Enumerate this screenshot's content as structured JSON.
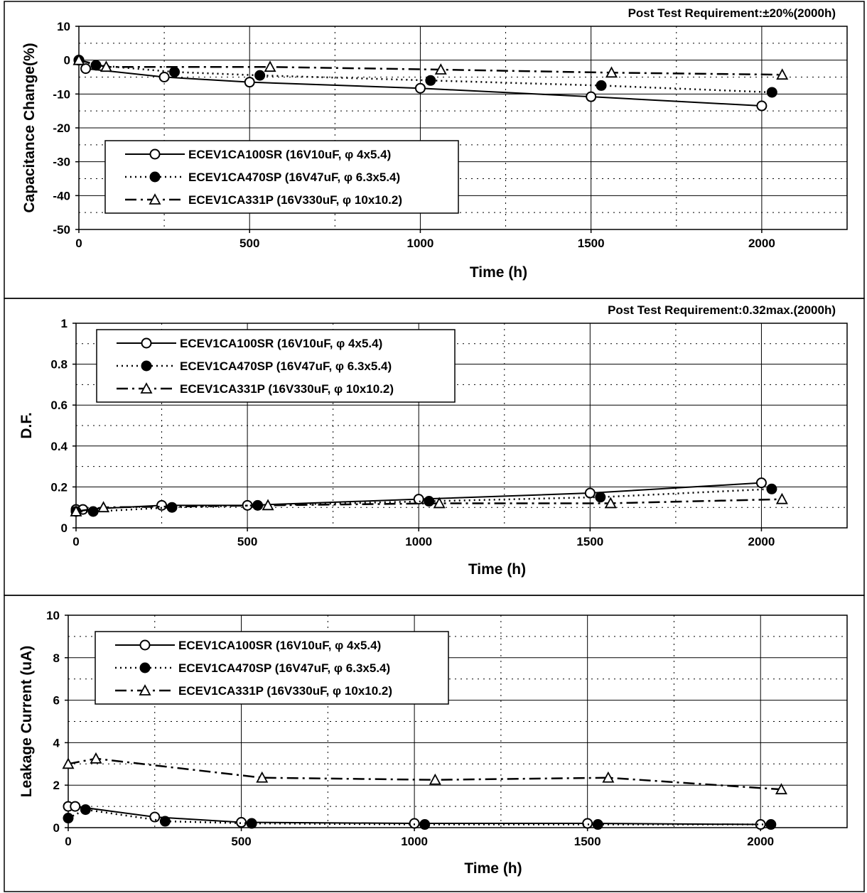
{
  "figure_title": "",
  "chart_data": [
    {
      "type": "line",
      "title": "",
      "requirement": "Post Test Requirement:±20%(2000h)",
      "xlabel": "Time (h)",
      "ylabel": "Capacitance Change(%)",
      "xlim": [
        0,
        2250
      ],
      "ylim": [
        -50,
        10
      ],
      "xticks": [
        "0",
        "500",
        "1000",
        "1500",
        "2000"
      ],
      "yticks": [
        "10",
        "0",
        "-10",
        "-20",
        "-30",
        "-40",
        "-50"
      ],
      "grid": true,
      "legend_position": "lower-left",
      "series": [
        {
          "name": "ECEV1CA100SR (16V10uF, φ 4x5.4)",
          "marker": "open-circle",
          "line": "solid",
          "x": [
            0,
            20,
            250,
            500,
            1000,
            1500,
            2000
          ],
          "y": [
            0,
            -2.5,
            -5,
            -6.5,
            -8.3,
            -10.8,
            -13.5
          ]
        },
        {
          "name": "ECEV1CA470SP (16V47uF, φ 6.3x5.4)",
          "marker": "filled-circle",
          "line": "dotted",
          "x": [
            0,
            50,
            280,
            530,
            1030,
            1530,
            2030
          ],
          "y": [
            0,
            -1.5,
            -3.5,
            -4.5,
            -6,
            -7.5,
            -9.5
          ]
        },
        {
          "name": "ECEV1CA331P (16V330uF, φ 10x10.2)",
          "marker": "open-triangle",
          "line": "dash-dot",
          "x": [
            0,
            80,
            560,
            1060,
            1560,
            2060
          ],
          "y": [
            0,
            -2,
            -2,
            -2.8,
            -3.7,
            -4.3
          ]
        }
      ]
    },
    {
      "type": "line",
      "title": "",
      "requirement": "Post Test Requirement:0.32max.(2000h)",
      "xlabel": "Time (h)",
      "ylabel": "D.F.",
      "xlim": [
        0,
        2250
      ],
      "ylim": [
        0,
        1
      ],
      "xticks": [
        "0",
        "500",
        "1000",
        "1500",
        "2000"
      ],
      "yticks": [
        "1",
        "0.8",
        "0.6",
        "0.4",
        "0.2",
        "0"
      ],
      "grid": true,
      "legend_position": "upper-left",
      "series": [
        {
          "name": "ECEV1CA100SR (16V10uF, φ 4x5.4)",
          "marker": "open-circle",
          "line": "solid",
          "x": [
            0,
            20,
            250,
            500,
            1000,
            1500,
            2000
          ],
          "y": [
            0.09,
            0.09,
            0.11,
            0.11,
            0.14,
            0.17,
            0.22
          ]
        },
        {
          "name": "ECEV1CA470SP (16V47uF, φ 6.3x5.4)",
          "marker": "filled-circle",
          "line": "dotted",
          "x": [
            0,
            50,
            280,
            530,
            1030,
            1530,
            2030
          ],
          "y": [
            0.08,
            0.08,
            0.1,
            0.11,
            0.13,
            0.15,
            0.19
          ]
        },
        {
          "name": "ECEV1CA331P (16V330uF, φ 10x10.2)",
          "marker": "open-triangle",
          "line": "dash-dot",
          "x": [
            0,
            80,
            560,
            1060,
            1560,
            2060
          ],
          "y": [
            0.08,
            0.1,
            0.11,
            0.12,
            0.12,
            0.14
          ]
        }
      ]
    },
    {
      "type": "line",
      "title": "",
      "requirement": "",
      "xlabel": "Time (h)",
      "ylabel": "Leakage Current (uA)",
      "xlim": [
        0,
        2250
      ],
      "ylim": [
        0,
        10
      ],
      "xticks": [
        "0",
        "500",
        "1000",
        "1500",
        "2000"
      ],
      "yticks": [
        "10",
        "8",
        "6",
        "4",
        "2",
        "0"
      ],
      "grid": true,
      "legend_position": "upper-left",
      "series": [
        {
          "name": "ECEV1CA100SR (16V10uF, φ 4x5.4)",
          "marker": "open-circle",
          "line": "solid",
          "x": [
            0,
            20,
            250,
            500,
            1000,
            1500,
            2000
          ],
          "y": [
            1,
            1,
            0.5,
            0.25,
            0.2,
            0.2,
            0.15
          ]
        },
        {
          "name": "ECEV1CA470SP (16V47uF, φ 6.3x5.4)",
          "marker": "filled-circle",
          "line": "dotted",
          "x": [
            0,
            50,
            280,
            530,
            1030,
            1530,
            2030
          ],
          "y": [
            0.45,
            0.85,
            0.3,
            0.2,
            0.15,
            0.15,
            0.15
          ]
        },
        {
          "name": "ECEV1CA331P (16V330uF, φ 10x10.2)",
          "marker": "open-triangle",
          "line": "dash-dot",
          "x": [
            0,
            80,
            560,
            1060,
            1560,
            2060
          ],
          "y": [
            3,
            3.25,
            2.35,
            2.25,
            2.35,
            1.8
          ]
        }
      ]
    }
  ]
}
